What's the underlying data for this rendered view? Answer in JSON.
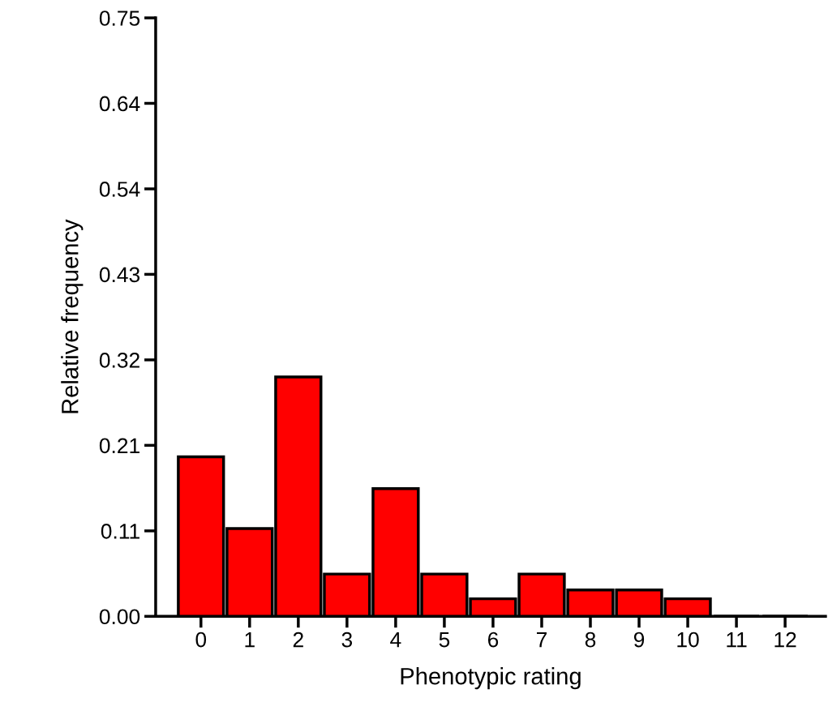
{
  "chart_data": {
    "type": "bar",
    "xlabel": "Phenotypic rating",
    "ylabel": "Relative frequency",
    "categories": [
      "0",
      "1",
      "2",
      "3",
      "4",
      "5",
      "6",
      "7",
      "8",
      "9",
      "10",
      "11",
      "12"
    ],
    "values": [
      0.2,
      0.11,
      0.3,
      0.053,
      0.16,
      0.053,
      0.022,
      0.053,
      0.033,
      0.033,
      0.022,
      0,
      0
    ],
    "color": "#ff0000",
    "ylim": [
      0,
      0.75
    ],
    "yticks": [
      {
        "value": 0,
        "label": "0.00"
      },
      {
        "value": 0.1071,
        "label": "0.11"
      },
      {
        "value": 0.2143,
        "label": "0.21"
      },
      {
        "value": 0.3214,
        "label": "0.32"
      },
      {
        "value": 0.4286,
        "label": "0.43"
      },
      {
        "value": 0.5357,
        "label": "0.54"
      },
      {
        "value": 0.6429,
        "label": "0.64"
      },
      {
        "value": 0.75,
        "label": "0.75"
      }
    ],
    "grid": false,
    "legend": false
  }
}
